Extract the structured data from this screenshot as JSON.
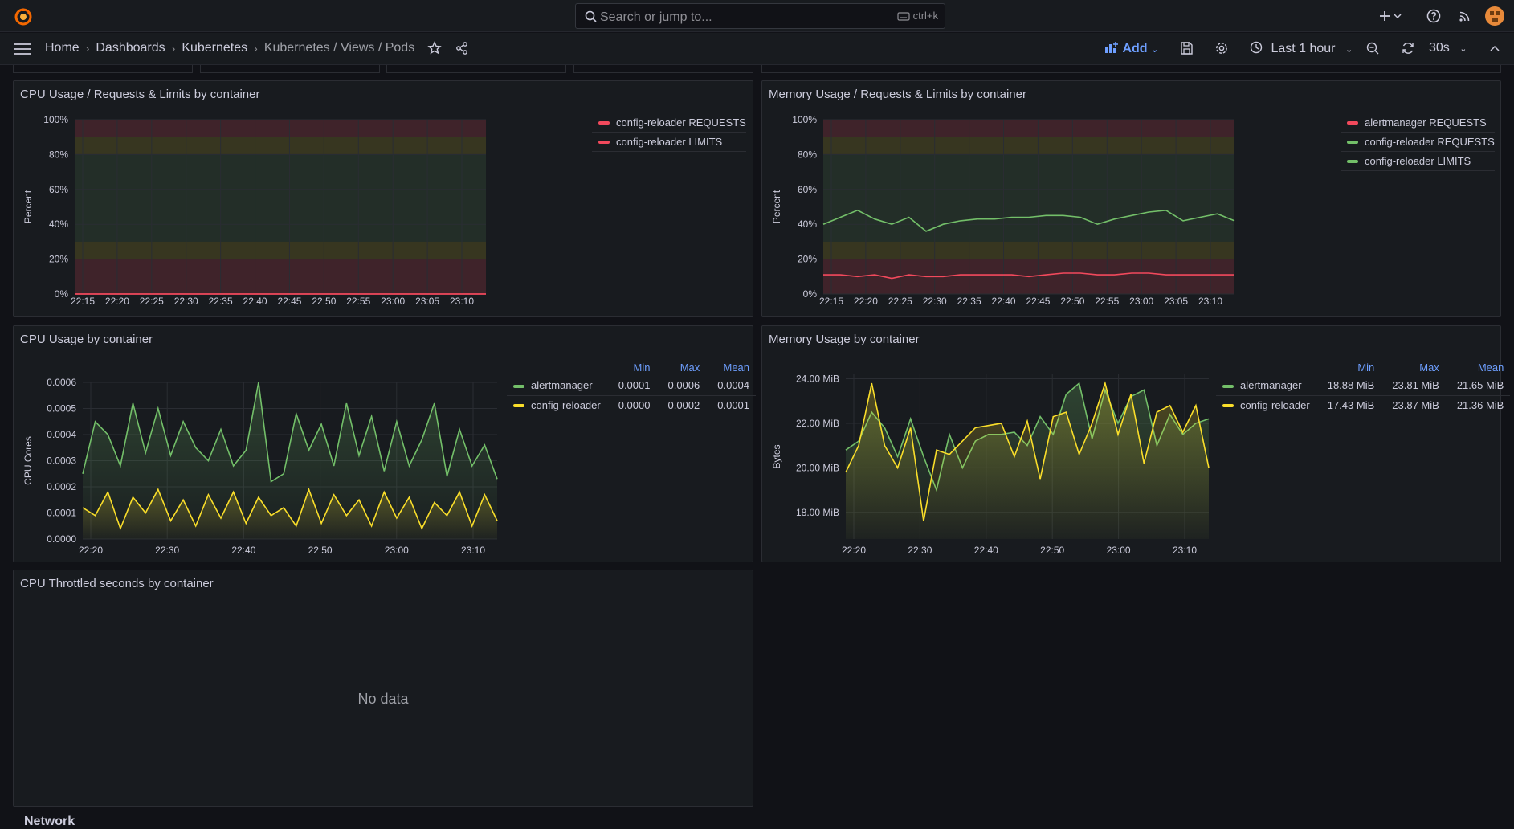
{
  "topbar": {
    "search_placeholder": "Search or jump to...",
    "search_shortcut": "ctrl+k"
  },
  "navbar": {
    "breadcrumbs": [
      "Home",
      "Dashboards",
      "Kubernetes",
      "Kubernetes / Views / Pods"
    ],
    "add_label": "Add",
    "time_range": "Last 1 hour",
    "refresh_interval": "30s"
  },
  "panels": {
    "cpu_req": {
      "title": "CPU Usage / Requests & Limits by container",
      "legend": [
        {
          "name": "config-reloader REQUESTS",
          "color": "#f2495c"
        },
        {
          "name": "config-reloader LIMITS",
          "color": "#f2495c"
        }
      ]
    },
    "mem_req": {
      "title": "Memory Usage / Requests & Limits by container",
      "legend": [
        {
          "name": "alertmanager REQUESTS",
          "color": "#f2495c"
        },
        {
          "name": "config-reloader REQUESTS",
          "color": "#73bf69"
        },
        {
          "name": "config-reloader LIMITS",
          "color": "#73bf69"
        }
      ]
    },
    "cpu_usage": {
      "title": "CPU Usage by container",
      "legend_headers": [
        "Min",
        "Max",
        "Mean"
      ],
      "legend": [
        {
          "name": "alertmanager",
          "color": "#73bf69",
          "min": "0.0001",
          "max": "0.0006",
          "mean": "0.0004"
        },
        {
          "name": "config-reloader",
          "color": "#fade2a",
          "min": "0.0000",
          "max": "0.0002",
          "mean": "0.0001"
        }
      ]
    },
    "mem_usage": {
      "title": "Memory Usage by container",
      "legend_headers": [
        "Min",
        "Max",
        "Mean"
      ],
      "legend": [
        {
          "name": "alertmanager",
          "color": "#73bf69",
          "min": "18.88 MiB",
          "max": "23.81 MiB",
          "mean": "21.65 MiB"
        },
        {
          "name": "config-reloader",
          "color": "#fade2a",
          "min": "17.43 MiB",
          "max": "23.87 MiB",
          "mean": "21.36 MiB"
        }
      ]
    },
    "cpu_throttled": {
      "title": "CPU Throttled seconds by container",
      "no_data": "No data"
    }
  },
  "next_row_title": "Network",
  "chart_data": [
    {
      "type": "line",
      "ylabel": "Percent",
      "yticks": [
        "0%",
        "20%",
        "40%",
        "60%",
        "80%",
        "100%"
      ],
      "xticks": [
        "22:15",
        "22:20",
        "22:25",
        "22:30",
        "22:35",
        "22:40",
        "22:45",
        "22:50",
        "22:55",
        "23:00",
        "23:05",
        "23:10"
      ],
      "ylim": [
        0,
        100
      ],
      "thresholds": [
        {
          "from": 0,
          "to": 20,
          "color": "red"
        },
        {
          "from": 20,
          "to": 30,
          "color": "yellow"
        },
        {
          "from": 30,
          "to": 80,
          "color": "green"
        },
        {
          "from": 80,
          "to": 90,
          "color": "yellow"
        },
        {
          "from": 90,
          "to": 100,
          "color": "red"
        }
      ],
      "series": [
        {
          "name": "config-reloader REQUESTS",
          "values": [
            0,
            0,
            0,
            0,
            0,
            0,
            0,
            0,
            0,
            0,
            0,
            0
          ]
        },
        {
          "name": "config-reloader LIMITS",
          "values": [
            0,
            0,
            0,
            0,
            0,
            0,
            0,
            0,
            0,
            0,
            0,
            0
          ]
        }
      ]
    },
    {
      "type": "line",
      "ylabel": "Percent",
      "yticks": [
        "0%",
        "20%",
        "40%",
        "60%",
        "80%",
        "100%"
      ],
      "xticks": [
        "22:15",
        "22:20",
        "22:25",
        "22:30",
        "22:35",
        "22:40",
        "22:45",
        "22:50",
        "22:55",
        "23:00",
        "23:05",
        "23:10"
      ],
      "ylim": [
        0,
        100
      ],
      "series": [
        {
          "name": "config-reloader REQUESTS",
          "values": [
            40,
            44,
            48,
            43,
            40,
            44,
            36,
            40,
            42,
            43,
            43,
            44,
            44,
            45,
            45,
            44,
            40,
            43,
            45,
            47,
            48,
            42,
            44,
            46,
            42
          ]
        },
        {
          "name": "alertmanager REQUESTS",
          "values": [
            11,
            11,
            10,
            11,
            9,
            11,
            10,
            10,
            11,
            11,
            11,
            11,
            10,
            11,
            12,
            12,
            11,
            11,
            12,
            12,
            11,
            11,
            11,
            11,
            11
          ]
        }
      ]
    },
    {
      "type": "line",
      "ylabel": "CPU Cores",
      "yticks": [
        "0.0000",
        "0.0001",
        "0.0002",
        "0.0003",
        "0.0004",
        "0.0005",
        "0.0006"
      ],
      "xticks": [
        "22:20",
        "22:30",
        "22:40",
        "22:50",
        "23:00",
        "23:10"
      ],
      "ylim": [
        0,
        0.0006
      ],
      "series": [
        {
          "name": "alertmanager",
          "values": [
            0.00025,
            0.00045,
            0.0004,
            0.00028,
            0.00052,
            0.00033,
            0.0005,
            0.00032,
            0.00045,
            0.00035,
            0.0003,
            0.00042,
            0.00028,
            0.00034,
            0.0006,
            0.00022,
            0.00025,
            0.00048,
            0.00034,
            0.00044,
            0.00028,
            0.00052,
            0.00032,
            0.00047,
            0.00026,
            0.00045,
            0.00028,
            0.00038,
            0.00052,
            0.00024,
            0.00042,
            0.00028,
            0.00036,
            0.00023
          ]
        },
        {
          "name": "config-reloader",
          "values": [
            0.00012,
            9e-05,
            0.00018,
            4e-05,
            0.00016,
            0.0001,
            0.00019,
            7e-05,
            0.00015,
            5e-05,
            0.00017,
            8e-05,
            0.00018,
            6e-05,
            0.00016,
            9e-05,
            0.00012,
            5e-05,
            0.00019,
            6e-05,
            0.00017,
            9e-05,
            0.00015,
            5e-05,
            0.00018,
            8e-05,
            0.00016,
            4e-05,
            0.00014,
            9e-05,
            0.00018,
            5e-05,
            0.00017,
            7e-05
          ]
        }
      ]
    },
    {
      "type": "area",
      "ylabel": "Bytes",
      "yticks": [
        "18.00 MiB",
        "20.00 MiB",
        "22.00 MiB",
        "24.00 MiB"
      ],
      "xticks": [
        "22:20",
        "22:30",
        "22:40",
        "22:50",
        "23:00",
        "23:10"
      ],
      "ylim": [
        16.8,
        24.2
      ],
      "series": [
        {
          "name": "alertmanager",
          "values": [
            20.8,
            21.2,
            22.5,
            21.8,
            20.5,
            22.2,
            20.5,
            19.0,
            21.5,
            20.0,
            21.2,
            21.5,
            21.5,
            21.6,
            21.0,
            22.3,
            21.5,
            23.3,
            23.8,
            21.3,
            23.5,
            22.0,
            23.2,
            23.5,
            21.0,
            22.4,
            21.5,
            22.0,
            22.2
          ]
        },
        {
          "name": "config-reloader",
          "values": [
            19.8,
            21.0,
            23.8,
            21.0,
            20.0,
            21.8,
            17.6,
            20.8,
            20.6,
            21.2,
            21.8,
            21.9,
            22.0,
            20.5,
            22.1,
            19.5,
            22.3,
            22.5,
            20.6,
            22.0,
            23.8,
            21.5,
            23.3,
            20.2,
            22.5,
            22.8,
            21.6,
            22.8,
            20.0
          ]
        }
      ]
    }
  ]
}
